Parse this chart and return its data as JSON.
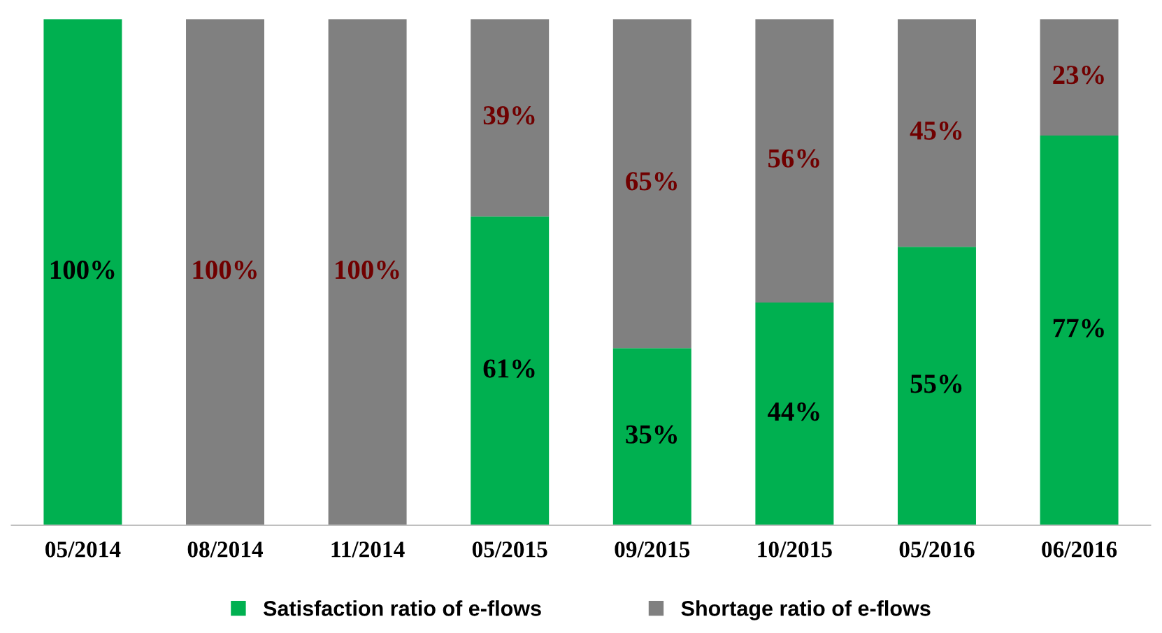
{
  "chart_data": {
    "type": "bar",
    "stacked": true,
    "categories": [
      "05/2014",
      "08/2014",
      "11/2014",
      "05/2015",
      "09/2015",
      "10/2015",
      "05/2016",
      "06/2016"
    ],
    "series": [
      {
        "name": "Satisfaction ratio of e-flows",
        "color": "#00b050",
        "values": [
          100,
          0,
          0,
          61,
          35,
          44,
          55,
          77
        ],
        "value_labels": [
          "100%",
          null,
          null,
          "61%",
          "35%",
          "44%",
          "55%",
          "77%"
        ]
      },
      {
        "name": "Shortage ratio of e-flows",
        "color": "#808080",
        "values": [
          0,
          100,
          100,
          39,
          65,
          56,
          45,
          23
        ],
        "value_labels": [
          null,
          "100%",
          "100%",
          "39%",
          "65%",
          "56%",
          "45%",
          "23%"
        ]
      }
    ],
    "tick_labels": "x",
    "grid": false,
    "legend": "bottom"
  }
}
